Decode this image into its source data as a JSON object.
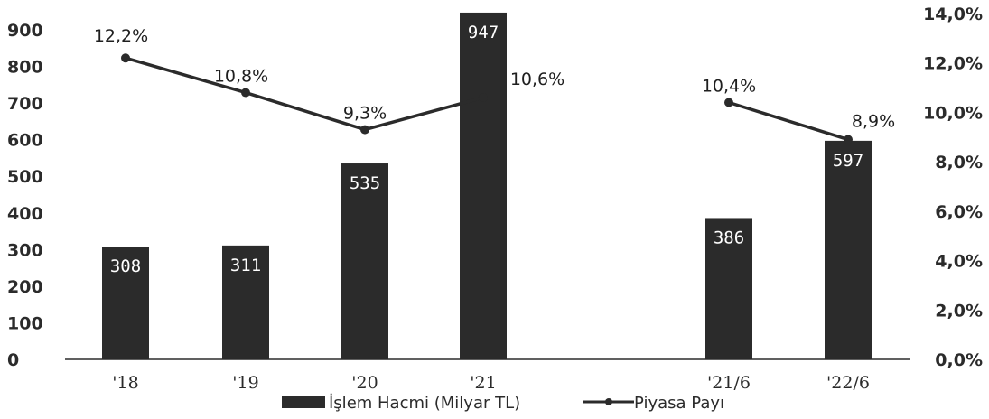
{
  "chart_data": {
    "type": "bar",
    "categories": [
      "'18",
      "'19",
      "'20",
      "'21",
      "'21/6",
      "'22/6"
    ],
    "series": [
      {
        "name": "İşlem Hacmi (Milyar TL)",
        "type": "bar",
        "axis": "left",
        "values": [
          308,
          311,
          535,
          947,
          386,
          597
        ],
        "labels": [
          "308",
          "311",
          "535",
          "947",
          "386",
          "597"
        ]
      },
      {
        "name": "Piyasa Payı",
        "type": "line",
        "axis": "right",
        "values": [
          12.2,
          10.8,
          9.3,
          10.6,
          10.4,
          8.9
        ],
        "labels": [
          "12,2%",
          "10,8%",
          "9,3%",
          "10,6%",
          "10,4%",
          "8,9%"
        ]
      }
    ],
    "line_segments": [
      [
        0,
        1,
        2,
        3
      ],
      [
        4,
        5
      ]
    ],
    "left_axis": {
      "ylim": [
        0,
        900
      ],
      "ticks": [
        "0",
        "100",
        "200",
        "300",
        "400",
        "500",
        "600",
        "700",
        "800",
        "900"
      ]
    },
    "right_axis": {
      "ylim": [
        0,
        14
      ],
      "ticks": [
        "0,0%",
        "2,0%",
        "4,0%",
        "6,0%",
        "8,0%",
        "10,0%",
        "12,0%",
        "14,0%"
      ]
    },
    "grid": false,
    "legend_position": "bottom-center",
    "colors": {
      "bar": "#2b2b2b",
      "line": "#2b2b2b",
      "text": "#2b2b2b"
    }
  }
}
